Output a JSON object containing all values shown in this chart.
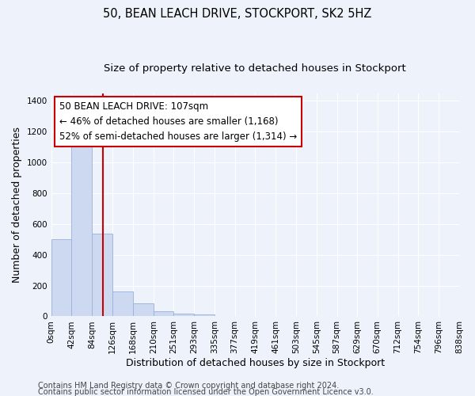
{
  "title": "50, BEAN LEACH DRIVE, STOCKPORT, SK2 5HZ",
  "subtitle": "Size of property relative to detached houses in Stockport",
  "xlabel": "Distribution of detached houses by size in Stockport",
  "ylabel": "Number of detached properties",
  "bin_edges": [
    0,
    42,
    84,
    126,
    168,
    210,
    251,
    293,
    335,
    377,
    419,
    461,
    503,
    545,
    587,
    629,
    670,
    712,
    754,
    796,
    838
  ],
  "bin_labels": [
    "0sqm",
    "42sqm",
    "84sqm",
    "126sqm",
    "168sqm",
    "210sqm",
    "251sqm",
    "293sqm",
    "335sqm",
    "377sqm",
    "419sqm",
    "461sqm",
    "503sqm",
    "545sqm",
    "587sqm",
    "629sqm",
    "670sqm",
    "712sqm",
    "754sqm",
    "796sqm",
    "838sqm"
  ],
  "bar_heights": [
    500,
    1150,
    540,
    160,
    85,
    35,
    20,
    15,
    0,
    0,
    0,
    0,
    0,
    0,
    0,
    0,
    0,
    0,
    0,
    0
  ],
  "bar_color": "#ccd9f0",
  "bar_edgecolor": "#9ab0d8",
  "property_size": 107,
  "red_line_color": "#cc0000",
  "ylim": [
    0,
    1450
  ],
  "yticks": [
    0,
    200,
    400,
    600,
    800,
    1000,
    1200,
    1400
  ],
  "annotation_line1": "50 BEAN LEACH DRIVE: 107sqm",
  "annotation_line2": "← 46% of detached houses are smaller (1,168)",
  "annotation_line3": "52% of semi-detached houses are larger (1,314) →",
  "annotation_box_color": "#ffffff",
  "annotation_box_edgecolor": "#cc0000",
  "footer_line1": "Contains HM Land Registry data © Crown copyright and database right 2024.",
  "footer_line2": "Contains public sector information licensed under the Open Government Licence v3.0.",
  "background_color": "#eef2fb",
  "grid_color": "#ffffff",
  "title_fontsize": 10.5,
  "subtitle_fontsize": 9.5,
  "axis_label_fontsize": 9,
  "tick_fontsize": 7.5,
  "annotation_fontsize": 8.5,
  "footer_fontsize": 7
}
